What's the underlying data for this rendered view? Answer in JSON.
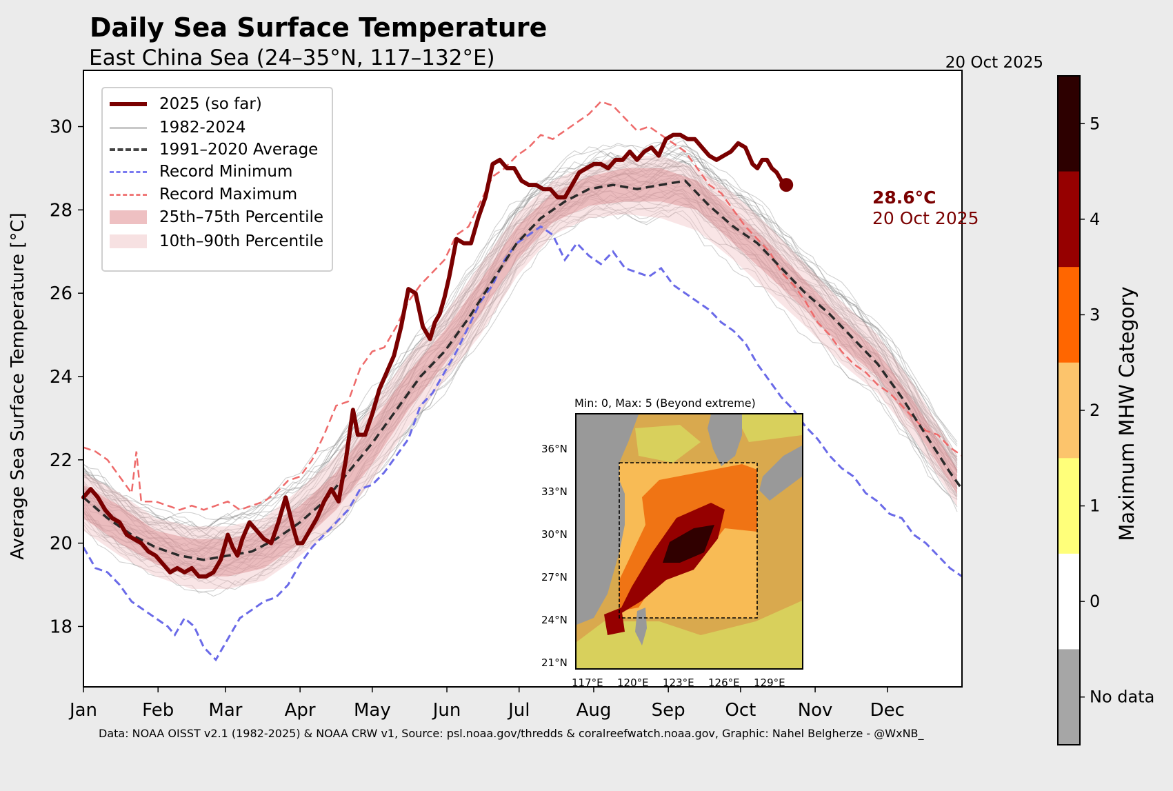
{
  "header": {
    "title": "Daily Sea Surface Temperature",
    "subtitle": "East China Sea (24–35°N, 117–132°E)",
    "date": "20 Oct 2025"
  },
  "legend": {
    "items": [
      {
        "label": "2025 (so far)",
        "kind": "line",
        "color": "#7a0000"
      },
      {
        "label": "1982-2024",
        "kind": "line",
        "color": "#c8c8c8"
      },
      {
        "label": "1991–2020 Average",
        "kind": "dash",
        "color": "#444444"
      },
      {
        "label": "Record Minimum",
        "kind": "dash",
        "color": "#7a7af0"
      },
      {
        "label": "Record Maximum",
        "kind": "dash",
        "color": "#f07a7a"
      },
      {
        "label": "25th–75th Percentile",
        "kind": "patch",
        "color": "#eec0c2"
      },
      {
        "label": "10th–90th Percentile",
        "kind": "patch",
        "color": "#f7e1e2"
      }
    ]
  },
  "annotation": {
    "value": "28.6°C",
    "date": "20 Oct 2025"
  },
  "attribution": "Data: NOAA OISST v2.1 (1982-2025) & NOAA CRW v1, Source: psl.noaa.gov/thredds & coralreefwatch.noaa.gov, Graphic: Nahel Belgherze - @WxNB_",
  "inset": {
    "title": "Min: 0, Max: 5 (Beyond extreme)",
    "lat_ticks": [
      "36°N",
      "33°N",
      "30°N",
      "27°N",
      "24°N",
      "21°N"
    ],
    "lon_ticks": [
      "117°E",
      "120°E",
      "123°E",
      "126°E",
      "129°E"
    ]
  },
  "colorbar": {
    "label": "Maximum MHW Category",
    "categories": [
      {
        "label": "5",
        "color": "#2d0000"
      },
      {
        "label": "4",
        "color": "#960000"
      },
      {
        "label": "3",
        "color": "#ff6600"
      },
      {
        "label": "2",
        "color": "#fcc46c"
      },
      {
        "label": "1",
        "color": "#ffff7a"
      },
      {
        "label": "0",
        "color": "#ffffff"
      },
      {
        "label": "No data",
        "color": "#a6a6a6"
      }
    ]
  },
  "chart_data": {
    "type": "line",
    "title": "Daily Sea Surface Temperature",
    "subtitle": "East China Sea (24–35°N, 117–132°E)",
    "xlabel": "",
    "ylabel": "Average Sea Surface Temperature [°C]",
    "ylim": [
      16.55,
      31.35
    ],
    "xlim_day_of_year": [
      0,
      365
    ],
    "yticks": [
      18,
      20,
      22,
      24,
      26,
      28,
      30
    ],
    "xtick_labels": [
      "Jan",
      "Feb",
      "Mar",
      "Apr",
      "May",
      "Jun",
      "Jul",
      "Aug",
      "Sep",
      "Oct",
      "Nov",
      "Dec"
    ],
    "xtick_days": [
      0,
      31,
      59,
      90,
      120,
      151,
      181,
      212,
      243,
      273,
      304,
      334
    ],
    "grid": false,
    "legend_position": "top-left",
    "series": [
      {
        "name": "2025 (so far)",
        "x_day": [
          0,
          3,
          6,
          9,
          12,
          15,
          18,
          21,
          24,
          27,
          30,
          33,
          36,
          39,
          42,
          45,
          48,
          51,
          54,
          57,
          60,
          62,
          64,
          66,
          69,
          72,
          75,
          78,
          81,
          84,
          87,
          89,
          91,
          94,
          97,
          100,
          103,
          106,
          109,
          112,
          114,
          117,
          120,
          123,
          126,
          129,
          132,
          135,
          138,
          141,
          144,
          146,
          148,
          150,
          152,
          155,
          158,
          161,
          164,
          167,
          170,
          173,
          176,
          179,
          182,
          185,
          188,
          191,
          194,
          197,
          200,
          203,
          206,
          209,
          212,
          215,
          218,
          221,
          224,
          227,
          230,
          233,
          236,
          239,
          242,
          245,
          248,
          251,
          254,
          257,
          260,
          263,
          266,
          269,
          272,
          275,
          278,
          280,
          282,
          284,
          286,
          288,
          290,
          292
        ],
        "values": [
          21.1,
          21.3,
          21.1,
          20.8,
          20.6,
          20.5,
          20.2,
          20.1,
          20.0,
          19.8,
          19.7,
          19.5,
          19.3,
          19.4,
          19.3,
          19.4,
          19.2,
          19.2,
          19.3,
          19.6,
          20.2,
          19.9,
          19.7,
          20.1,
          20.5,
          20.3,
          20.1,
          20.0,
          20.5,
          21.1,
          20.4,
          20.0,
          20.0,
          20.3,
          20.6,
          21.0,
          21.3,
          21.0,
          22.0,
          23.2,
          22.6,
          22.6,
          23.1,
          23.7,
          24.1,
          24.5,
          25.2,
          26.1,
          26.0,
          25.2,
          24.9,
          25.3,
          25.5,
          25.9,
          26.4,
          27.3,
          27.2,
          27.2,
          27.8,
          28.3,
          29.1,
          29.2,
          29.0,
          29.0,
          28.7,
          28.6,
          28.6,
          28.5,
          28.5,
          28.3,
          28.3,
          28.6,
          28.9,
          29.0,
          29.1,
          29.1,
          29.0,
          29.2,
          29.2,
          29.4,
          29.2,
          29.4,
          29.5,
          29.3,
          29.7,
          29.8,
          29.8,
          29.7,
          29.7,
          29.5,
          29.3,
          29.2,
          29.3,
          29.4,
          29.6,
          29.5,
          29.1,
          29.0,
          29.2,
          29.2,
          29.0,
          28.9,
          28.7,
          28.6
        ]
      },
      {
        "name": "1991–2020 Average",
        "x_day": [
          0,
          10,
          20,
          30,
          40,
          50,
          60,
          70,
          80,
          90,
          100,
          110,
          120,
          130,
          140,
          150,
          160,
          170,
          180,
          190,
          200,
          210,
          220,
          230,
          240,
          250,
          260,
          270,
          280,
          290,
          300,
          310,
          320,
          330,
          340,
          350,
          360,
          365
        ],
        "values": [
          21.1,
          20.6,
          20.2,
          19.9,
          19.7,
          19.6,
          19.7,
          19.8,
          20.1,
          20.5,
          21.0,
          21.7,
          22.4,
          23.2,
          24.0,
          24.6,
          25.4,
          26.3,
          27.2,
          27.8,
          28.2,
          28.5,
          28.6,
          28.5,
          28.6,
          28.7,
          28.1,
          27.6,
          27.2,
          26.6,
          26.0,
          25.5,
          24.9,
          24.3,
          23.5,
          22.6,
          21.7,
          21.3
        ]
      },
      {
        "name": "Record Minimum",
        "x_day": [
          0,
          5,
          10,
          15,
          20,
          25,
          30,
          35,
          38,
          42,
          46,
          50,
          55,
          60,
          65,
          70,
          75,
          80,
          85,
          90,
          95,
          100,
          105,
          110,
          115,
          120,
          125,
          130,
          135,
          140,
          145,
          150,
          155,
          160,
          165,
          170,
          175,
          180,
          185,
          190,
          195,
          200,
          205,
          210,
          215,
          220,
          225,
          230,
          235,
          240,
          245,
          250,
          255,
          260,
          265,
          270,
          275,
          280,
          285,
          290,
          295,
          300,
          305,
          310,
          315,
          320,
          325,
          330,
          335,
          340,
          345,
          350,
          355,
          360,
          365
        ],
        "values": [
          19.9,
          19.4,
          19.3,
          19.0,
          18.6,
          18.4,
          18.2,
          18.0,
          17.8,
          18.2,
          18.0,
          17.5,
          17.2,
          17.7,
          18.2,
          18.4,
          18.6,
          18.7,
          19.0,
          19.5,
          19.9,
          20.2,
          20.5,
          20.8,
          21.3,
          21.4,
          21.7,
          22.1,
          22.5,
          23.3,
          23.6,
          24.1,
          24.6,
          25.2,
          25.8,
          26.2,
          26.8,
          27.2,
          27.4,
          27.6,
          27.4,
          26.8,
          27.2,
          26.9,
          26.7,
          27.0,
          26.6,
          26.5,
          26.4,
          26.6,
          26.2,
          26.0,
          25.8,
          25.6,
          25.3,
          25.1,
          24.8,
          24.3,
          23.9,
          23.5,
          23.2,
          22.8,
          22.5,
          22.1,
          21.8,
          21.6,
          21.2,
          21.0,
          20.7,
          20.6,
          20.2,
          20.0,
          19.7,
          19.4,
          19.2
        ]
      },
      {
        "name": "Record Maximum",
        "x_day": [
          0,
          5,
          10,
          15,
          20,
          22,
          24,
          30,
          35,
          40,
          45,
          50,
          55,
          60,
          65,
          70,
          75,
          80,
          85,
          90,
          95,
          100,
          105,
          110,
          115,
          120,
          125,
          130,
          135,
          140,
          145,
          150,
          155,
          160,
          165,
          170,
          175,
          180,
          185,
          190,
          195,
          200,
          205,
          210,
          215,
          220,
          225,
          230,
          235,
          240,
          245,
          250,
          255,
          260,
          265,
          270,
          275,
          280,
          285,
          290,
          295,
          300,
          305,
          310,
          315,
          320,
          325,
          330,
          335,
          340,
          345,
          350,
          355,
          360,
          365
        ],
        "values": [
          22.3,
          22.2,
          22.0,
          21.6,
          21.2,
          22.2,
          21.0,
          21.0,
          20.9,
          20.8,
          20.9,
          20.8,
          20.9,
          21.0,
          20.8,
          20.9,
          21.0,
          21.2,
          21.5,
          21.6,
          22.0,
          22.6,
          23.3,
          23.4,
          24.2,
          24.6,
          24.7,
          25.2,
          25.8,
          26.2,
          26.5,
          26.8,
          27.4,
          27.6,
          28.2,
          28.8,
          29.0,
          29.3,
          29.5,
          29.8,
          29.7,
          29.9,
          30.1,
          30.3,
          30.6,
          30.5,
          30.2,
          29.9,
          30.0,
          29.8,
          29.6,
          29.4,
          29.0,
          28.6,
          28.4,
          28.0,
          27.6,
          27.3,
          27.0,
          26.5,
          26.2,
          25.8,
          25.3,
          25.0,
          24.6,
          24.3,
          24.1,
          23.8,
          23.6,
          23.3,
          23.0,
          22.7,
          22.6,
          22.3,
          22.1
        ]
      },
      {
        "name": "25th Percentile",
        "x_day": [
          0,
          15,
          30,
          45,
          60,
          75,
          90,
          105,
          120,
          135,
          150,
          165,
          180,
          195,
          210,
          225,
          240,
          255,
          270,
          285,
          300,
          315,
          330,
          345,
          365
        ],
        "values": [
          20.6,
          20.0,
          19.5,
          19.2,
          19.2,
          19.4,
          20.0,
          20.8,
          21.9,
          23.2,
          24.3,
          25.5,
          26.8,
          27.7,
          28.1,
          28.2,
          28.2,
          28.0,
          27.2,
          26.4,
          25.6,
          24.7,
          24.0,
          22.8,
          21.0
        ]
      },
      {
        "name": "75th Percentile",
        "x_day": [
          0,
          15,
          30,
          45,
          60,
          75,
          90,
          105,
          120,
          135,
          150,
          165,
          180,
          195,
          210,
          225,
          240,
          255,
          270,
          285,
          300,
          315,
          330,
          345,
          365
        ],
        "values": [
          21.4,
          20.9,
          20.3,
          20.1,
          20.1,
          20.3,
          20.9,
          21.7,
          22.9,
          24.1,
          25.1,
          26.3,
          27.6,
          28.4,
          28.8,
          29.0,
          29.0,
          28.7,
          28.0,
          27.2,
          26.3,
          25.4,
          24.6,
          23.4,
          21.6
        ]
      },
      {
        "name": "10th Percentile",
        "x_day": [
          0,
          15,
          30,
          45,
          60,
          75,
          90,
          105,
          120,
          135,
          150,
          165,
          180,
          195,
          210,
          225,
          240,
          255,
          270,
          285,
          300,
          315,
          330,
          345,
          365
        ],
        "values": [
          20.3,
          19.7,
          19.2,
          18.9,
          18.9,
          19.1,
          19.7,
          20.4,
          21.5,
          22.8,
          23.9,
          25.0,
          26.4,
          27.4,
          27.8,
          27.9,
          27.8,
          27.5,
          26.8,
          26.0,
          25.2,
          24.3,
          23.6,
          22.5,
          20.7
        ]
      },
      {
        "name": "90th Percentile",
        "x_day": [
          0,
          15,
          30,
          45,
          60,
          75,
          90,
          105,
          120,
          135,
          150,
          165,
          180,
          195,
          210,
          225,
          240,
          255,
          270,
          285,
          300,
          315,
          330,
          345,
          365
        ],
        "values": [
          21.7,
          21.2,
          20.6,
          20.4,
          20.4,
          20.6,
          21.3,
          22.1,
          23.3,
          24.5,
          25.5,
          26.7,
          27.9,
          28.7,
          29.1,
          29.3,
          29.3,
          29.0,
          28.4,
          27.6,
          26.7,
          25.8,
          25.0,
          23.8,
          21.9
        ]
      }
    ],
    "background_years": "1982-2024",
    "last_point": {
      "day": 292,
      "value": 28.6,
      "label": "28.6°C",
      "date": "20 Oct 2025"
    }
  }
}
